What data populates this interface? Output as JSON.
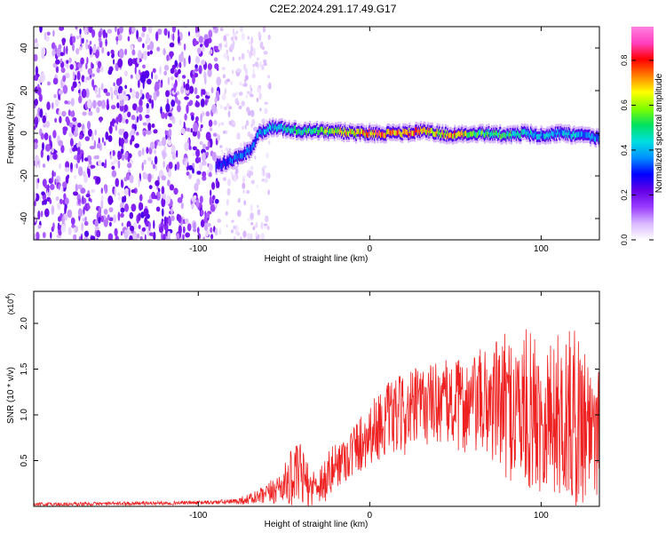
{
  "title": "C2E2.2024.291.17.49.G17",
  "chart_data": [
    {
      "type": "heatmap",
      "title": "C2E2.2024.291.17.49.G17",
      "xlabel": "Height of straight line (km)",
      "ylabel": "Frequency (Hz)",
      "xlim": [
        -196,
        134
      ],
      "ylim": [
        -50,
        50
      ],
      "x_ticks": [
        -100,
        0,
        100
      ],
      "y_ticks": [
        -40,
        -20,
        0,
        20,
        40
      ],
      "colorbar": {
        "label": "Normalized spectral amplitude",
        "range": [
          0.0,
          0.95
        ],
        "ticks": [
          "0.0",
          "0.2",
          "0.4",
          "0.6",
          "0.8"
        ],
        "colors": [
          "#ffffff",
          "#d9b8ff",
          "#9a3cff",
          "#6400e6",
          "#0000ff",
          "#0090ff",
          "#00e0e0",
          "#00e060",
          "#80ff00",
          "#ffff00",
          "#ff8000",
          "#ff0000",
          "#ff40c0",
          "#ff80e0"
        ]
      },
      "signal_track": {
        "x": [
          -90,
          -85,
          -80,
          -75,
          -70,
          -65,
          -60,
          -55,
          -50,
          -40,
          -30,
          -20,
          -10,
          0,
          10,
          20,
          30,
          40,
          50,
          60,
          70,
          80,
          90,
          100,
          110,
          120,
          130
        ],
        "freq": [
          -15,
          -14,
          -12,
          -10,
          -8,
          0,
          2,
          3,
          2,
          1,
          1,
          1,
          0,
          0,
          0,
          0,
          1,
          0,
          -1,
          0,
          0,
          -1,
          0,
          -1,
          0,
          -1,
          -2
        ],
        "amplitude": [
          0.3,
          0.35,
          0.4,
          0.4,
          0.35,
          0.45,
          0.45,
          0.5,
          0.5,
          0.55,
          0.6,
          0.7,
          0.75,
          0.85,
          0.8,
          0.85,
          0.8,
          0.75,
          0.8,
          0.6,
          0.6,
          0.55,
          0.5,
          0.45,
          0.45,
          0.45,
          0.4
        ]
      },
      "noise_region_end_km": -88
    },
    {
      "type": "line",
      "xlabel": "Height of straight line (km)",
      "ylabel": "SNR (10 * v/v)",
      "y_multiplier": "(x10",
      "y_multiplier_exp": "4",
      "y_multiplier_close": ")",
      "xlim": [
        -196,
        134
      ],
      "ylim": [
        0,
        2.35
      ],
      "x_ticks": [
        -100,
        0,
        100
      ],
      "y_ticks": [
        "0.5",
        "1.0",
        "1.5",
        "2.0"
      ],
      "series": [
        {
          "name": "SNR",
          "color": "#ee2222",
          "x": [
            -196,
            -150,
            -100,
            -80,
            -70,
            -60,
            -50,
            -45,
            -40,
            -35,
            -30,
            -25,
            -20,
            -10,
            0,
            10,
            20,
            30,
            40,
            50,
            60,
            70,
            80,
            90,
            100,
            110,
            120,
            130,
            134
          ],
          "y": [
            0.02,
            0.03,
            0.04,
            0.05,
            0.08,
            0.12,
            0.25,
            0.3,
            0.35,
            0.2,
            0.25,
            0.3,
            0.45,
            0.6,
            0.8,
            0.95,
            1.0,
            1.1,
            1.15,
            1.1,
            1.1,
            1.15,
            1.1,
            1.05,
            1.0,
            1.0,
            0.95,
            0.95,
            0.9
          ],
          "spread": [
            0.02,
            0.02,
            0.02,
            0.03,
            0.06,
            0.12,
            0.2,
            0.35,
            0.35,
            0.2,
            0.2,
            0.3,
            0.25,
            0.3,
            0.35,
            0.4,
            0.45,
            0.45,
            0.45,
            0.5,
            0.55,
            0.65,
            0.8,
            0.9,
            0.85,
            0.9,
            1.0,
            0.85,
            0.8
          ]
        }
      ]
    }
  ]
}
